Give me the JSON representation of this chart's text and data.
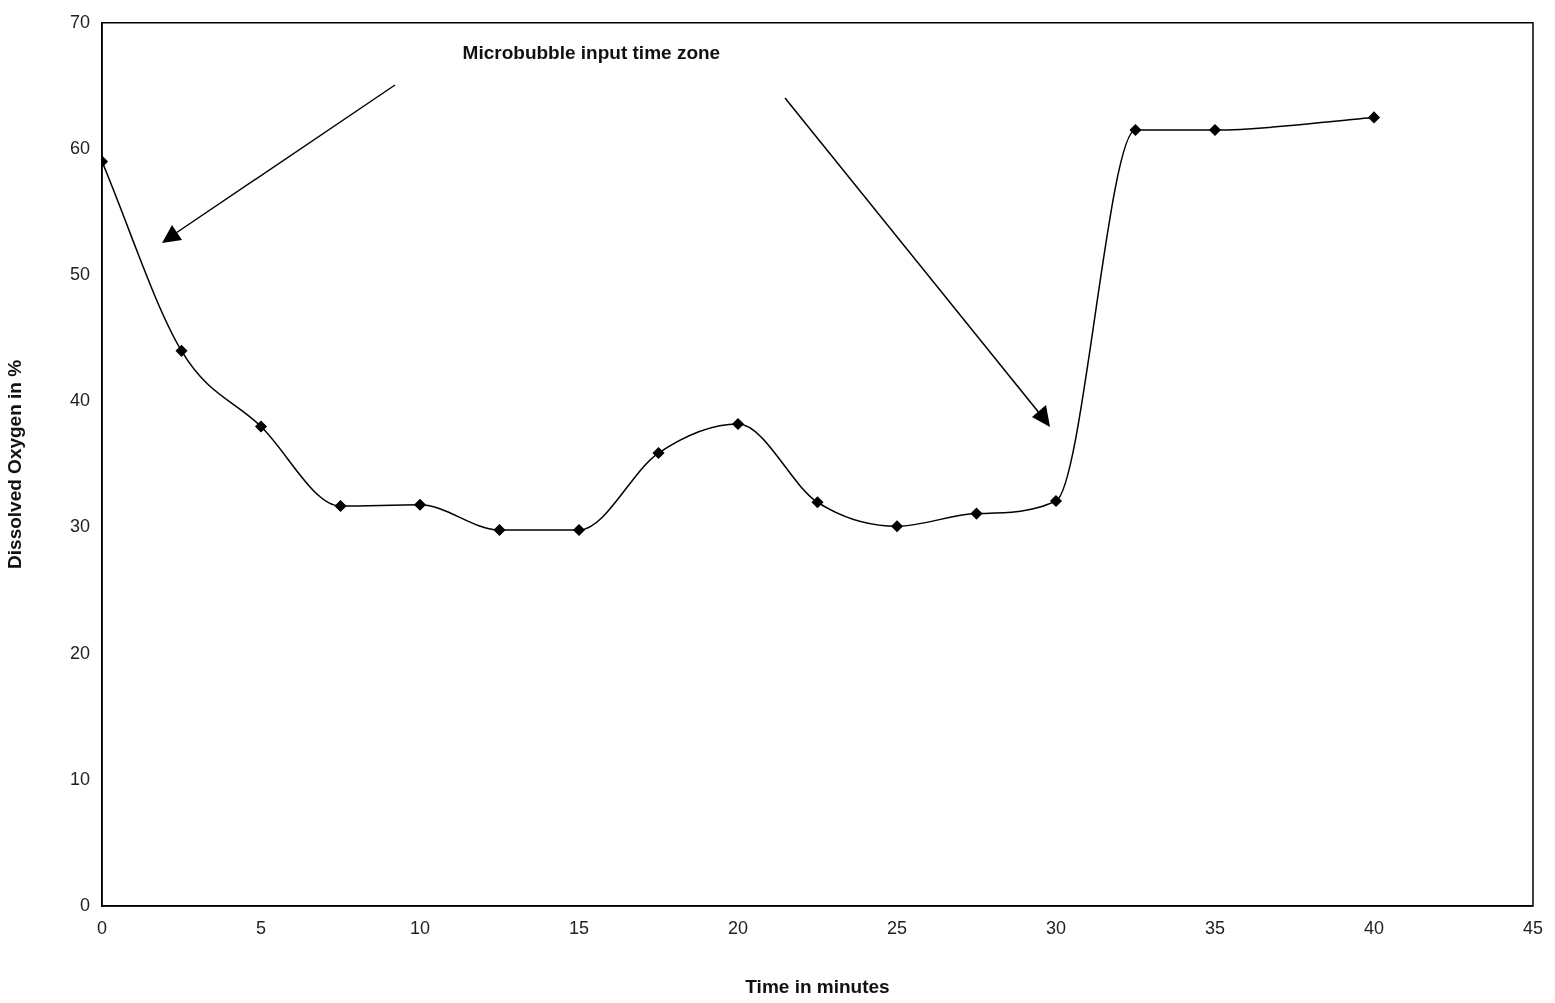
{
  "chart_data": {
    "type": "line",
    "xlabel": "Time in minutes",
    "ylabel": "Dissolved Oxygen in %",
    "annotations": [
      "Microbubble input time zone"
    ],
    "x": [
      0,
      2.5,
      5,
      7.5,
      10,
      12.5,
      15,
      17.5,
      20,
      22.5,
      25,
      27.5,
      30,
      32.5,
      35,
      40
    ],
    "series": [
      {
        "color": "#000000",
        "values": [
          59,
          44,
          38,
          31.7,
          31.8,
          29.8,
          29.8,
          35.9,
          38.2,
          32,
          30.1,
          31.1,
          32.1,
          61.5,
          61.5,
          62.5
        ]
      }
    ],
    "xlim": [
      0,
      45
    ],
    "xticks": [
      0,
      5,
      10,
      15,
      20,
      25,
      30,
      35,
      40,
      45
    ],
    "ylim": [
      0,
      70
    ],
    "yticks": [
      0,
      10,
      20,
      30,
      40,
      50,
      60,
      70
    ],
    "grid": false,
    "legend": false,
    "marker": "diamond",
    "line_style": "solid"
  }
}
